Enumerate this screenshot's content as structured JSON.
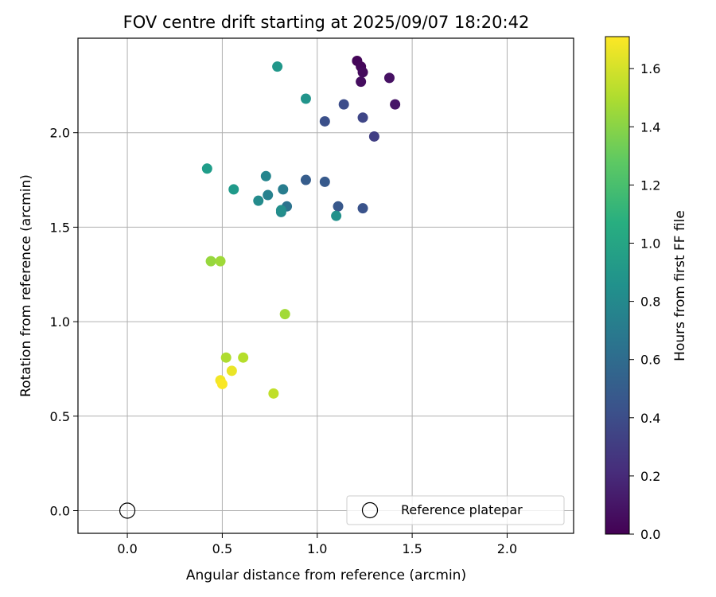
{
  "chart_data": {
    "type": "scatter",
    "title": "FOV centre drift starting at 2025/09/07 18:20:42",
    "xlabel": "Angular distance from reference (arcmin)",
    "ylabel": "Rotation from reference (arcmin)",
    "xlim": [
      -0.26,
      2.35
    ],
    "ylim": [
      -0.12,
      2.5
    ],
    "xticks": [
      0.0,
      0.5,
      1.0,
      1.5,
      2.0
    ],
    "yticks": [
      0.0,
      0.5,
      1.0,
      1.5,
      2.0
    ],
    "xtick_labels": [
      "0.0",
      "0.5",
      "1.0",
      "1.5",
      "2.0"
    ],
    "ytick_labels": [
      "0.0",
      "0.5",
      "1.0",
      "1.5",
      "2.0"
    ],
    "grid": true,
    "colormap": "viridis",
    "colorbar": {
      "label": "Hours from first FF file",
      "range": [
        0.0,
        1.71
      ],
      "ticks": [
        0.0,
        0.2,
        0.4,
        0.6,
        0.8,
        1.0,
        1.2,
        1.4,
        1.6
      ],
      "tick_labels": [
        "0.0",
        "0.2",
        "0.4",
        "0.6",
        "0.8",
        "1.0",
        "1.2",
        "1.4",
        "1.6"
      ]
    },
    "legend": {
      "entries": [
        "Reference platepar"
      ],
      "position": "lower right"
    },
    "reference_point": {
      "x": 0.0,
      "y": 0.0,
      "label": "Reference platepar"
    },
    "points": [
      {
        "x": 1.21,
        "y": 2.38,
        "c": 0.02
      },
      {
        "x": 1.23,
        "y": 2.35,
        "c": 0.03
      },
      {
        "x": 1.24,
        "y": 2.32,
        "c": 0.05
      },
      {
        "x": 1.23,
        "y": 2.27,
        "c": 0.06
      },
      {
        "x": 1.38,
        "y": 2.29,
        "c": 0.08
      },
      {
        "x": 1.41,
        "y": 2.15,
        "c": 0.1
      },
      {
        "x": 1.3,
        "y": 1.98,
        "c": 0.32
      },
      {
        "x": 1.24,
        "y": 2.08,
        "c": 0.36
      },
      {
        "x": 1.14,
        "y": 2.15,
        "c": 0.4
      },
      {
        "x": 1.04,
        "y": 2.06,
        "c": 0.42
      },
      {
        "x": 1.24,
        "y": 1.6,
        "c": 0.44
      },
      {
        "x": 1.11,
        "y": 1.61,
        "c": 0.47
      },
      {
        "x": 1.04,
        "y": 1.74,
        "c": 0.48
      },
      {
        "x": 0.94,
        "y": 1.75,
        "c": 0.5
      },
      {
        "x": 0.84,
        "y": 1.61,
        "c": 0.65
      },
      {
        "x": 0.82,
        "y": 1.7,
        "c": 0.72
      },
      {
        "x": 0.74,
        "y": 1.67,
        "c": 0.75
      },
      {
        "x": 0.73,
        "y": 1.77,
        "c": 0.78
      },
      {
        "x": 0.81,
        "y": 1.58,
        "c": 0.8
      },
      {
        "x": 0.81,
        "y": 1.59,
        "c": 0.85
      },
      {
        "x": 0.69,
        "y": 1.64,
        "c": 0.82
      },
      {
        "x": 1.1,
        "y": 1.56,
        "c": 0.86
      },
      {
        "x": 0.94,
        "y": 2.18,
        "c": 0.88
      },
      {
        "x": 0.79,
        "y": 2.35,
        "c": 0.9
      },
      {
        "x": 0.56,
        "y": 1.7,
        "c": 0.92
      },
      {
        "x": 0.42,
        "y": 1.81,
        "c": 0.94
      },
      {
        "x": 0.44,
        "y": 1.32,
        "c": 1.44
      },
      {
        "x": 0.49,
        "y": 1.32,
        "c": 1.46
      },
      {
        "x": 0.83,
        "y": 1.04,
        "c": 1.47
      },
      {
        "x": 0.52,
        "y": 0.81,
        "c": 1.5
      },
      {
        "x": 0.61,
        "y": 0.81,
        "c": 1.52
      },
      {
        "x": 0.77,
        "y": 0.62,
        "c": 1.55
      },
      {
        "x": 0.55,
        "y": 0.74,
        "c": 1.66
      },
      {
        "x": 0.49,
        "y": 0.69,
        "c": 1.68
      },
      {
        "x": 0.5,
        "y": 0.67,
        "c": 1.7
      }
    ]
  }
}
